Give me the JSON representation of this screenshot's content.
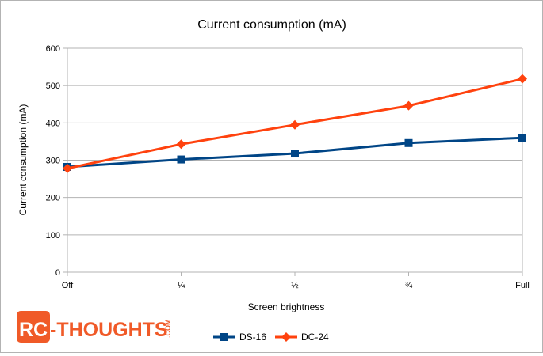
{
  "chart_data": {
    "type": "line",
    "title": "Current consumption (mA)",
    "xlabel": "Screen brightness",
    "ylabel": "Current consumption (mA)",
    "categories": [
      "Off",
      "¼",
      "½",
      "¾",
      "Full"
    ],
    "ylim": [
      0,
      600
    ],
    "yticks": [
      "0",
      "100",
      "200",
      "300",
      "400",
      "500",
      "600"
    ],
    "grid": true,
    "legend_position": "bottom",
    "series": [
      {
        "name": "DS-16",
        "values": [
          282,
          302,
          318,
          346,
          360
        ],
        "color": "#004586",
        "marker": "square"
      },
      {
        "name": "DC-24",
        "values": [
          278,
          343,
          395,
          446,
          518
        ],
        "color": "#ff420e",
        "marker": "diamond"
      }
    ]
  },
  "logo": {
    "text_rc": "RC",
    "text_main": "-THOUGHTS",
    "text_suffix": ".COM",
    "color": "#f05a28"
  }
}
